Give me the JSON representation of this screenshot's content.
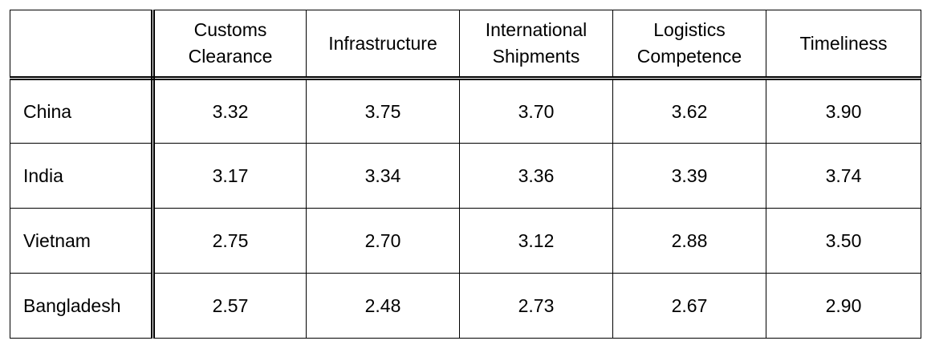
{
  "table": {
    "columns": [
      "",
      "Customs\nClearance",
      "Infrastructure",
      "International\nShipments",
      "Logistics\nCompetence",
      "Timeliness"
    ],
    "rows": [
      {
        "label": "China",
        "values": [
          "3.32",
          "3.75",
          "3.70",
          "3.62",
          "3.90"
        ]
      },
      {
        "label": "India",
        "values": [
          "3.17",
          "3.34",
          "3.36",
          "3.39",
          "3.74"
        ]
      },
      {
        "label": "Vietnam",
        "values": [
          "2.75",
          "2.70",
          "3.12",
          "2.88",
          "3.50"
        ]
      },
      {
        "label": "Bangladesh",
        "values": [
          "2.57",
          "2.48",
          "2.73",
          "2.67",
          "2.90"
        ]
      }
    ]
  }
}
